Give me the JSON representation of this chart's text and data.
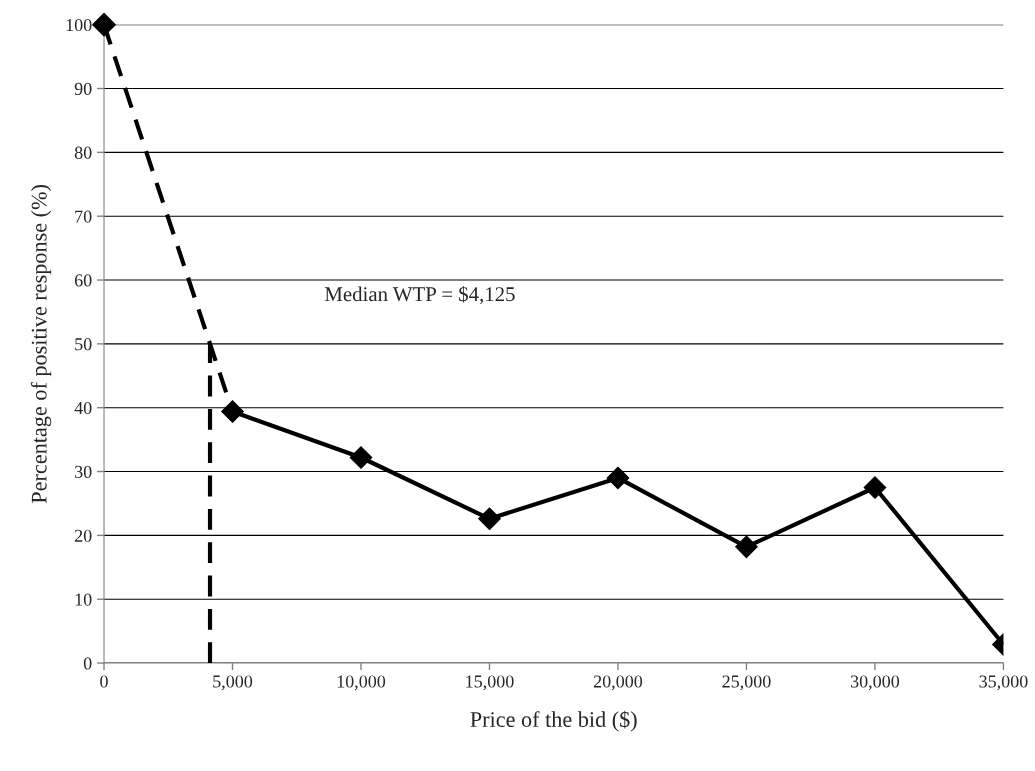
{
  "chart_data": {
    "type": "line",
    "xlabel": "Price of the bid ($)",
    "ylabel": "Percentage of positive response (%)",
    "series": [
      {
        "x": [
          5000,
          10000,
          15000,
          20000,
          25000,
          30000,
          35000
        ],
        "values": [
          39.4,
          32.2,
          22.6,
          29.0,
          18.2,
          27.5,
          2.9
        ],
        "color": "#000000",
        "marker": "diamond",
        "line_style": "solid"
      },
      {
        "x": [
          0,
          4125,
          5000
        ],
        "values": [
          100,
          50,
          39.4
        ],
        "color": "#000000",
        "marker": "none",
        "line_style": "dashed"
      },
      {
        "x": [
          4125,
          4125
        ],
        "values": [
          0,
          50
        ],
        "color": "#000000",
        "marker": "none",
        "line_style": "dashed"
      },
      {
        "type": "scatter",
        "x": [
          0
        ],
        "values": [
          100
        ],
        "color": "#000000",
        "marker": "diamond"
      }
    ],
    "annotations": [
      "Median WTP = $4,125"
    ],
    "xlim": [
      0,
      35000
    ],
    "xticks": [
      {
        "value": 0,
        "label": "0"
      },
      {
        "value": 5000,
        "label": "5,000"
      },
      {
        "value": 10000,
        "label": "10,000"
      },
      {
        "value": 15000,
        "label": "15,000"
      },
      {
        "value": 20000,
        "label": "20,000"
      },
      {
        "value": 25000,
        "label": "25,000"
      },
      {
        "value": 30000,
        "label": "30,000"
      },
      {
        "value": 35000,
        "label": "35,000"
      }
    ],
    "ylim": [
      0,
      100
    ],
    "yticks": [
      0,
      10,
      20,
      30,
      40,
      50,
      60,
      70,
      80,
      90,
      100
    ],
    "grid": "y",
    "legend": false
  }
}
